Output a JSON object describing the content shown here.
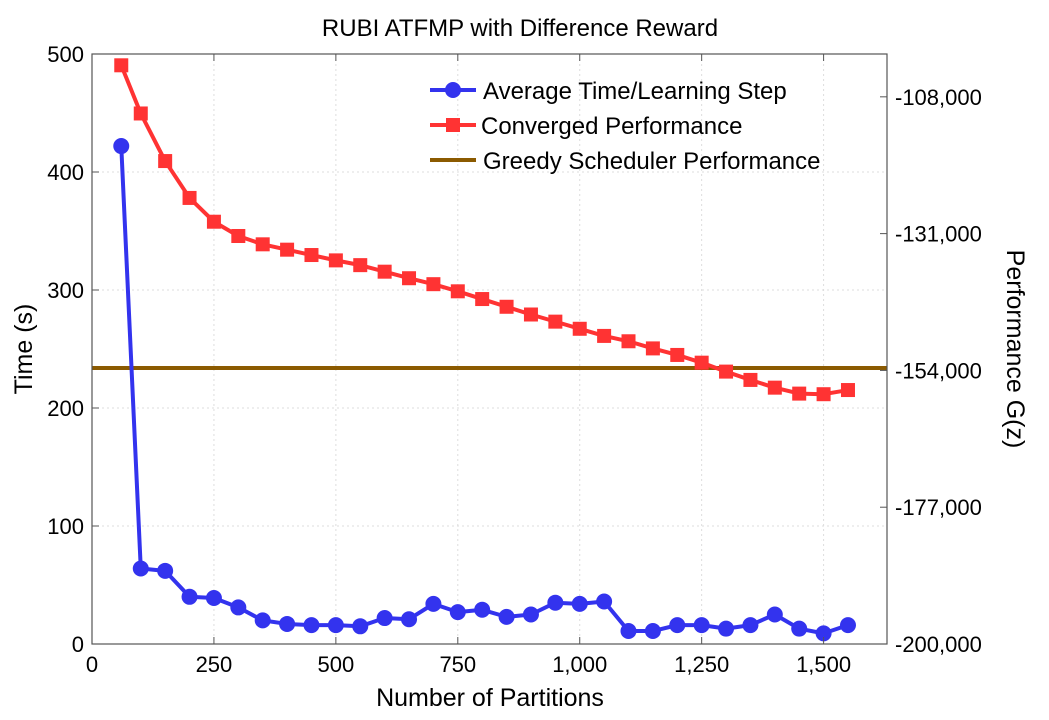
{
  "chart_data": {
    "type": "line",
    "title": "RUBI ATFMP with Difference Reward",
    "xlabel": "Number of Partitions",
    "ylabel": "Time (s)",
    "y2label": "Performance G(z)",
    "xlim": [
      0,
      1630
    ],
    "ylim": [
      0,
      500
    ],
    "y2lim": [
      -200000,
      -100800
    ],
    "xticks": [
      0,
      250,
      500,
      750,
      1000,
      1250,
      1500
    ],
    "xtick_labels": [
      "0",
      "250",
      "500",
      "750",
      "1,000",
      "1,250",
      "1,500"
    ],
    "yticks": [
      0,
      100,
      200,
      300,
      400,
      500
    ],
    "ytick_labels": [
      "0",
      "100",
      "200",
      "300",
      "400",
      "500"
    ],
    "y2ticks": [
      -200000,
      -177000,
      -154000,
      -131000,
      -108000
    ],
    "y2tick_labels": [
      "-200,000",
      "-177,000",
      "-154,000",
      "-131,000",
      "-108,000"
    ],
    "grid": true,
    "legend_position": "top-right",
    "series": [
      {
        "name": "Average Time/Learning Step",
        "axis": "left",
        "color": "#3333ee",
        "marker": "circle",
        "x": [
          60,
          100,
          150,
          200,
          250,
          300,
          350,
          400,
          450,
          500,
          550,
          600,
          650,
          700,
          750,
          800,
          850,
          900,
          950,
          1000,
          1050,
          1100,
          1150,
          1200,
          1250,
          1300,
          1350,
          1400,
          1450,
          1500,
          1550
        ],
        "y": [
          422,
          64,
          62,
          40,
          39,
          31,
          20,
          17,
          16,
          16,
          15,
          22,
          21,
          34,
          27,
          29,
          23,
          25,
          35,
          34,
          36,
          11,
          11,
          16,
          16,
          13,
          16,
          25,
          13,
          9,
          16
        ]
      },
      {
        "name": "Converged Performance",
        "axis": "right",
        "color": "#ff3333",
        "marker": "square",
        "x": [
          60,
          100,
          150,
          200,
          250,
          300,
          350,
          400,
          450,
          500,
          550,
          600,
          650,
          700,
          750,
          800,
          850,
          900,
          950,
          1000,
          1050,
          1100,
          1150,
          1200,
          1250,
          1300,
          1350,
          1400,
          1450,
          1500,
          1550
        ],
        "y": [
          -102700,
          -110800,
          -118800,
          -125000,
          -129000,
          -131400,
          -132800,
          -133700,
          -134600,
          -135500,
          -136300,
          -137400,
          -138500,
          -139500,
          -140700,
          -142000,
          -143300,
          -144600,
          -145800,
          -147000,
          -148200,
          -149100,
          -150300,
          -151400,
          -152700,
          -154200,
          -155600,
          -156900,
          -157900,
          -158000,
          -157300
        ]
      },
      {
        "name": "Greedy Scheduler Performance",
        "axis": "right",
        "color": "#8b5a00",
        "marker": "none",
        "constant": -153600
      }
    ]
  }
}
